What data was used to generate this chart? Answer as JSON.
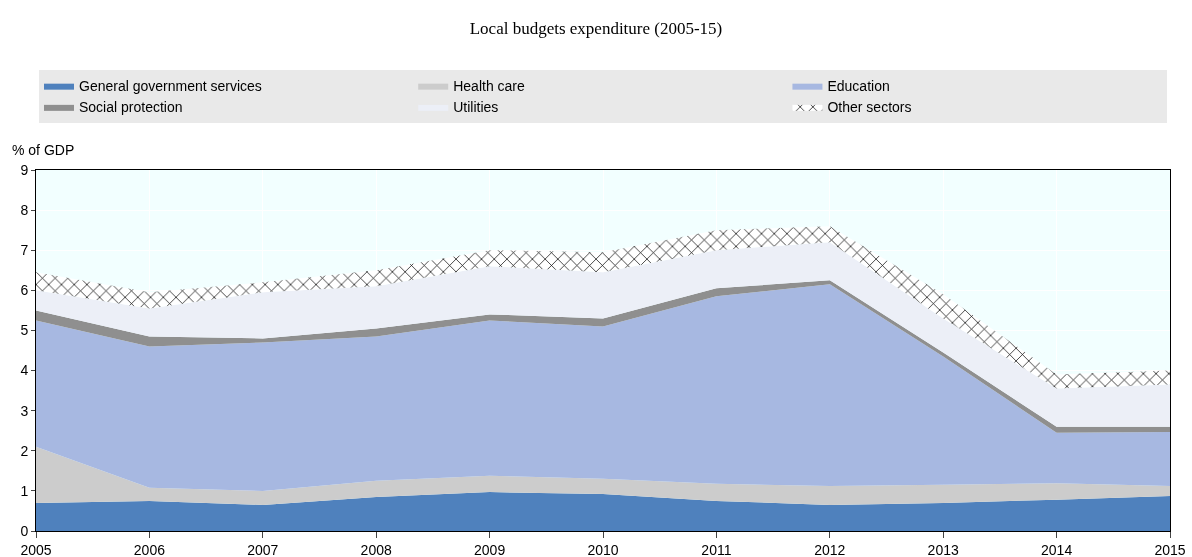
{
  "chart_data": {
    "type": "area",
    "title": "Local budgets expenditure (2005-15)",
    "ylabel": "% of GDP",
    "x": [
      2005,
      2006,
      2007,
      2008,
      2009,
      2010,
      2011,
      2012,
      2013,
      2014,
      2015
    ],
    "stacked": true,
    "series": [
      {
        "name": "General government services",
        "color": "#4f81bd",
        "values": [
          0.7,
          0.75,
          0.65,
          0.85,
          0.97,
          0.92,
          0.75,
          0.65,
          0.7,
          0.78,
          0.87
        ]
      },
      {
        "name": "Health care",
        "color": "#cccccc",
        "values": [
          1.4,
          0.33,
          0.35,
          0.4,
          0.41,
          0.38,
          0.43,
          0.47,
          0.45,
          0.41,
          0.25
        ]
      },
      {
        "name": "Education",
        "color": "#a7b8e1",
        "values": [
          3.15,
          3.52,
          3.7,
          3.6,
          3.87,
          3.8,
          4.67,
          5.03,
          3.2,
          1.26,
          1.35
        ]
      },
      {
        "name": "Social protection",
        "color": "#8f8f8f",
        "values": [
          0.25,
          0.25,
          0.1,
          0.2,
          0.15,
          0.2,
          0.2,
          0.1,
          0.1,
          0.15,
          0.13
        ]
      },
      {
        "name": "Utilities",
        "color": "#eceff7",
        "values": [
          0.5,
          0.7,
          1.15,
          1.05,
          1.2,
          1.15,
          0.95,
          0.95,
          0.85,
          0.95,
          1.05
        ]
      },
      {
        "name": "Other sectors",
        "color": "#000000",
        "values": [
          0.45,
          0.4,
          0.25,
          0.4,
          0.4,
          0.5,
          0.5,
          0.4,
          0.6,
          0.35,
          0.35
        ]
      }
    ],
    "xlim": [
      2005,
      2015
    ],
    "xticks": [
      2005,
      2006,
      2007,
      2008,
      2009,
      2010,
      2011,
      2012,
      2013,
      2014,
      2015
    ],
    "ylim": [
      0,
      9
    ],
    "yticks": [
      0,
      1,
      2,
      3,
      4,
      5,
      6,
      7,
      8,
      9
    ],
    "grid": true,
    "legend": "top"
  }
}
